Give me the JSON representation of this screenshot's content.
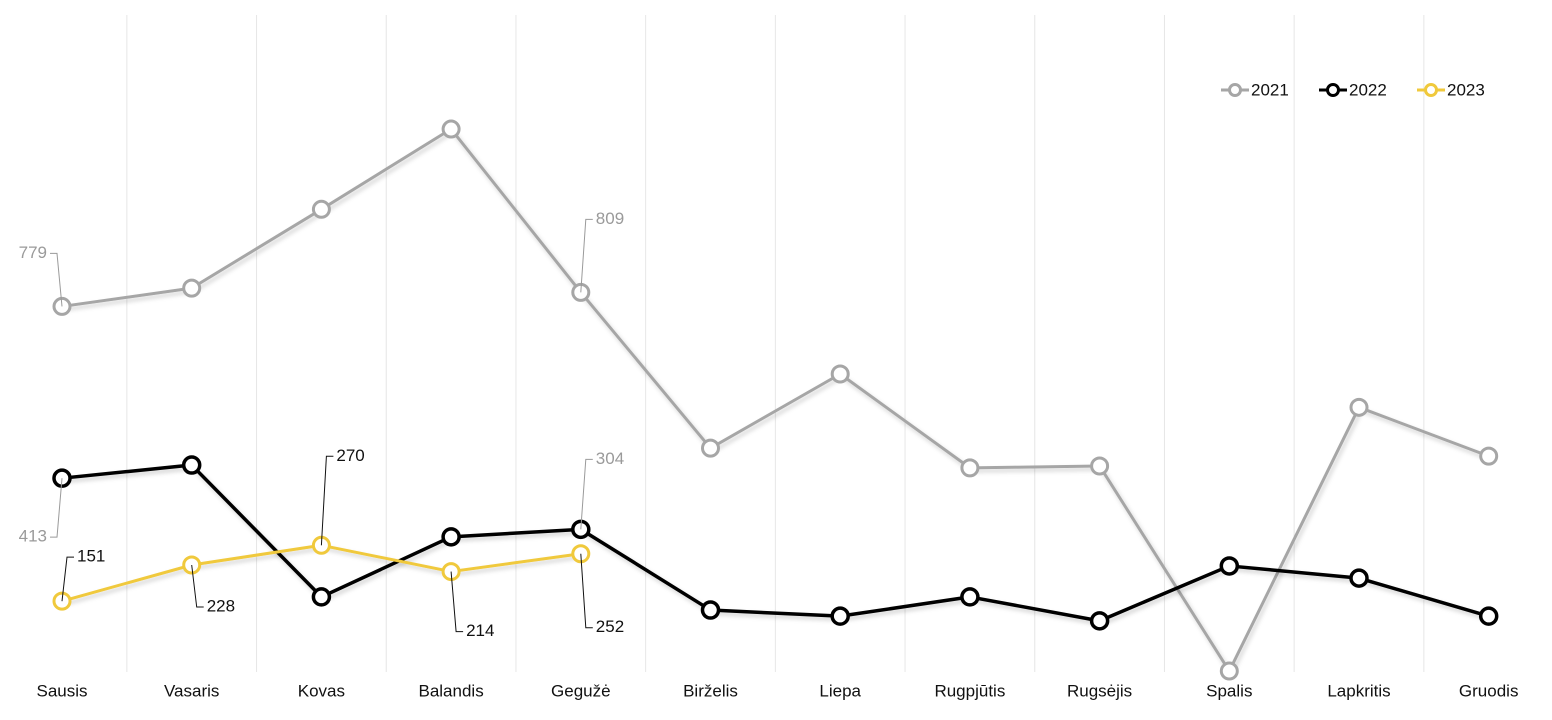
{
  "chart_data": {
    "type": "line",
    "categories": [
      "Sausis",
      "Vasaris",
      "Kovas",
      "Balandis",
      "Gegužė",
      "Birželis",
      "Liepa",
      "Rugpjūtis",
      "Rugsėjis",
      "Spalis",
      "Lapkritis",
      "Gruodis"
    ],
    "ylim": [
      0,
      1400
    ],
    "legend": "top-right",
    "series": [
      {
        "name": "2021",
        "color": "#a6a6a6",
        "label_color": "#9a9a9a",
        "labeled": [
          0,
          4
        ],
        "values": [
          779,
          818,
          986,
          1157,
          809,
          477,
          635,
          435,
          439,
          2,
          564,
          460
        ]
      },
      {
        "name": "2022",
        "color": "#000000",
        "label_color": "#9a9a9a",
        "labeled": [
          0,
          4
        ],
        "values": [
          413,
          441,
          160,
          288,
          304,
          132,
          119,
          160,
          109,
          226,
          200,
          119
        ]
      },
      {
        "name": "2023",
        "color": "#f0c93c",
        "label_color": "#111111",
        "labeled": [
          0,
          1,
          2,
          3,
          4
        ],
        "highlight": 4,
        "values": [
          151,
          228,
          270,
          214,
          252,
          null,
          null,
          null,
          null,
          null,
          null,
          null
        ]
      }
    ]
  }
}
